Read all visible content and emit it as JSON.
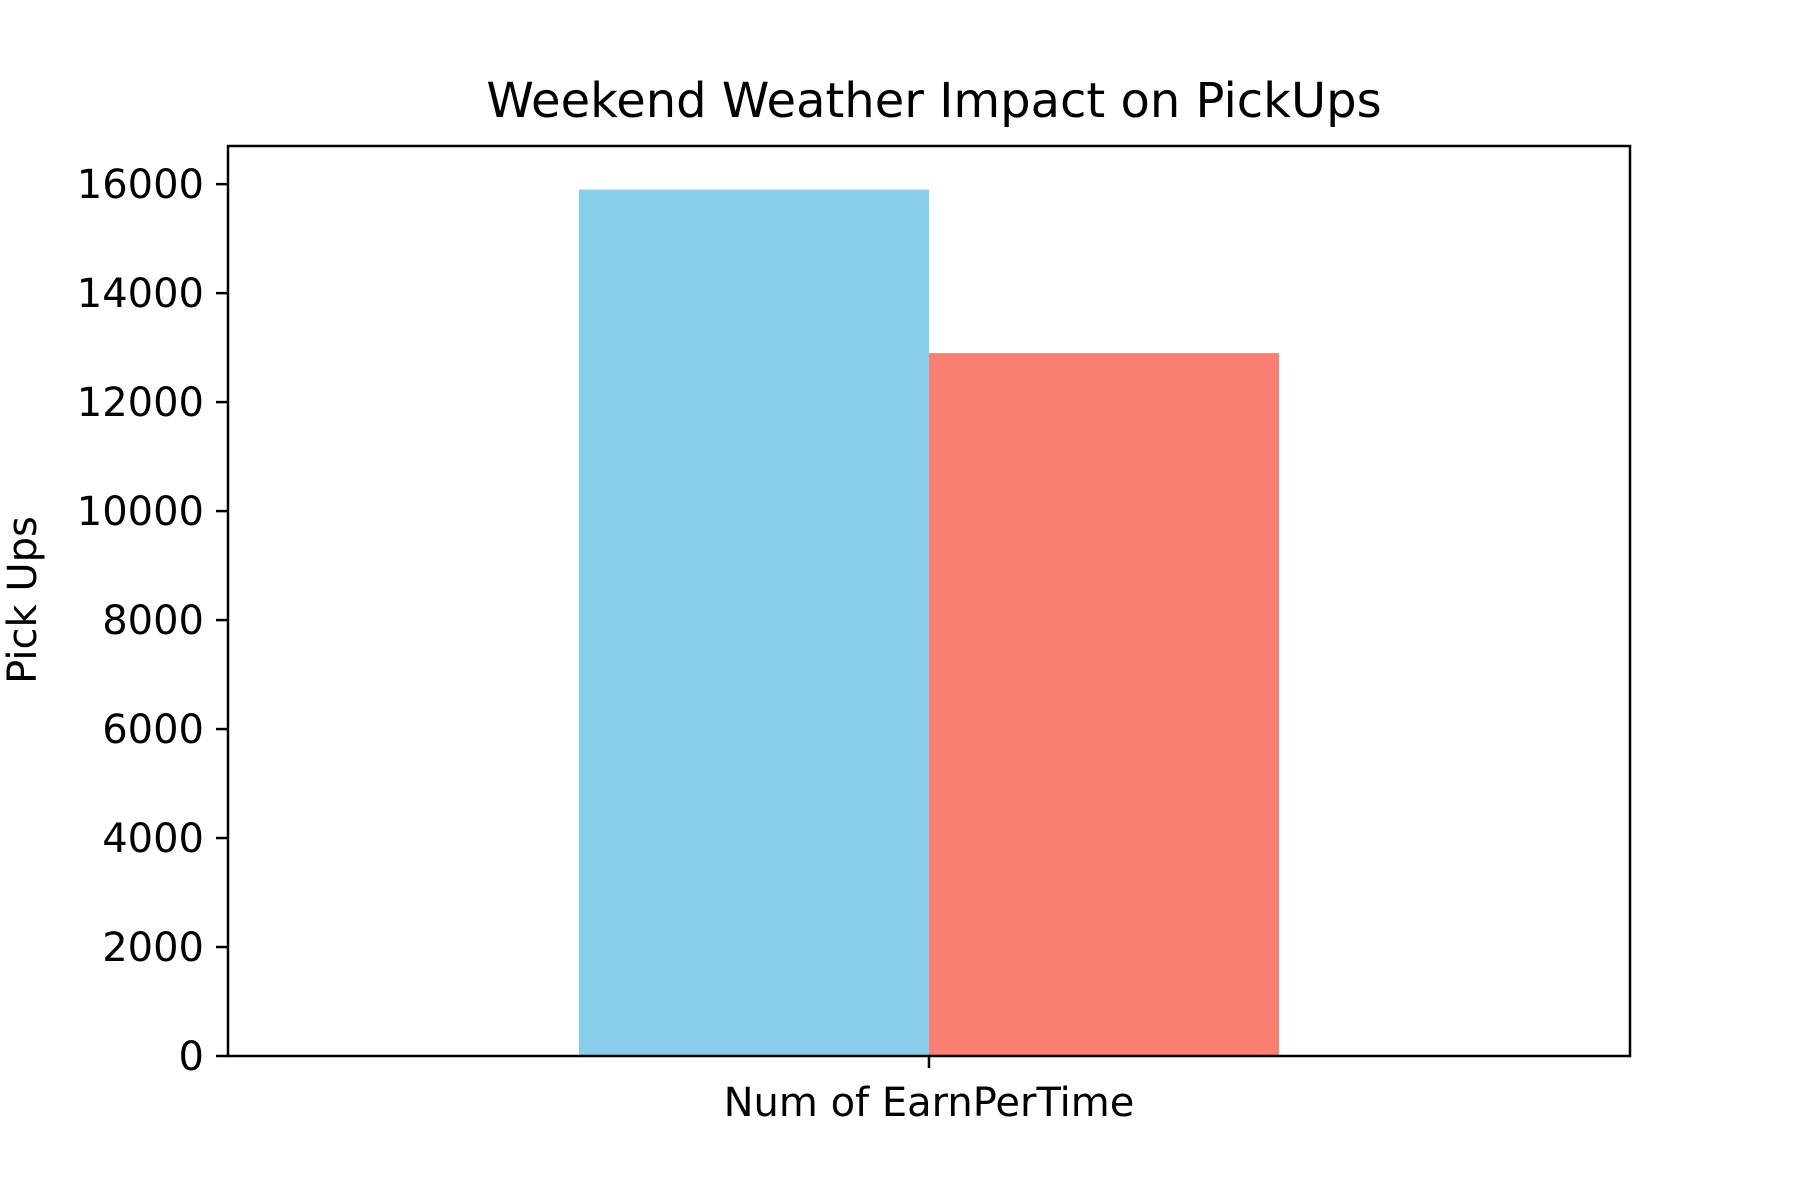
{
  "chart_data": {
    "type": "bar",
    "title": "Weekend Weather Impact on PickUps",
    "xlabel": "",
    "ylabel": "Pick Ups",
    "categories": [
      "Num of EarnPerTime"
    ],
    "series": [
      {
        "color": "#87CEEB",
        "values": [
          15900
        ]
      },
      {
        "color": "#FA8072",
        "values": [
          12900
        ]
      }
    ],
    "ylim": [
      0,
      16700
    ],
    "yticks": [
      0,
      2000,
      4000,
      6000,
      8000,
      10000,
      12000,
      14000,
      16000
    ],
    "grid": false,
    "legend": "none"
  }
}
